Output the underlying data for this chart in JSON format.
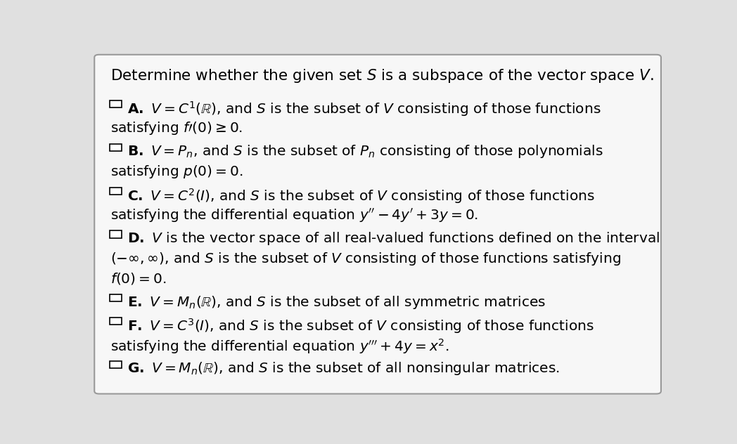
{
  "background_color": "#e0e0e0",
  "box_color": "#f7f7f7",
  "border_color": "#999999",
  "title": "Determine whether the given set $S$ is a subspace of the vector space $V$.",
  "title_fontsize": 15.5,
  "item_fontsize": 14.5,
  "items": [
    {
      "label": "A",
      "lines": [
        "$\\mathbf{A.}$ $V = C^1(\\mathbb{R})$, and $S$ is the subset of $V$ consisting of those functions",
        "satisfying $f\\prime(0) \\geq 0$."
      ]
    },
    {
      "label": "B",
      "lines": [
        "$\\mathbf{B.}$ $V = P_n$, and $S$ is the subset of $P_n$ consisting of those polynomials",
        "satisfying $p(0) = 0$."
      ]
    },
    {
      "label": "C",
      "lines": [
        "$\\mathbf{C.}$ $V = C^2(I)$, and $S$ is the subset of $V$ consisting of those functions",
        "satisfying the differential equation $y^{\\prime\\prime} - 4y^{\\prime} + 3y = 0$."
      ]
    },
    {
      "label": "D",
      "lines": [
        "$\\mathbf{D.}$ $V$ is the vector space of all real-valued functions defined on the interval",
        "$(-\\infty, \\infty)$, and $S$ is the subset of $V$ consisting of those functions satisfying",
        "$f(0) = 0$."
      ]
    },
    {
      "label": "E",
      "lines": [
        "$\\mathbf{E.}$ $V = M_n(\\mathbb{R})$, and $S$ is the subset of all symmetric matrices"
      ]
    },
    {
      "label": "F",
      "lines": [
        "$\\mathbf{F.}$ $V = C^3(I)$, and $S$ is the subset of $V$ consisting of those functions",
        "satisfying the differential equation $y^{\\prime\\prime\\prime} + 4y = x^2$."
      ]
    },
    {
      "label": "G",
      "lines": [
        "$\\mathbf{G.}$ $V = M_n(\\mathbb{R})$, and $S$ is the subset of all nonsingular matrices."
      ]
    }
  ]
}
